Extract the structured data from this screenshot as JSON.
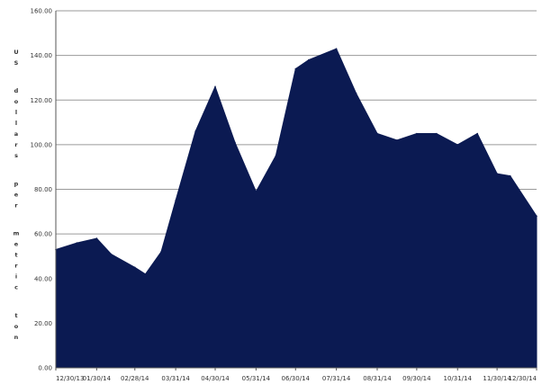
{
  "chart_data": {
    "type": "area",
    "ylabel": "US dollars per metric ton",
    "ylim": [
      0,
      160
    ],
    "yticks": [
      "0.00",
      "20.00",
      "40.00",
      "60.00",
      "80.00",
      "100.00",
      "120.00",
      "140.00",
      "160.00"
    ],
    "xtick_labels": [
      "12/30/13",
      "01/30/14",
      "02/28/14",
      "03/31/14",
      "04/30/14",
      "05/31/14",
      "06/30/14",
      "07/31/14",
      "08/31/14",
      "09/30/14",
      "10/31/14",
      "11/30/14",
      "12/30/14"
    ],
    "grid": true,
    "color": "#0b1a52",
    "series": [
      {
        "x": [
          "12/30/13",
          "01/15/14",
          "01/30/14",
          "02/10/14",
          "02/28/14",
          "03/08/14",
          "03/20/14",
          "03/31/14",
          "04/15/14",
          "04/30/14",
          "05/15/14",
          "05/31/14",
          "06/15/14",
          "06/30/14",
          "07/10/14",
          "07/31/14",
          "08/15/14",
          "08/31/14",
          "09/15/14",
          "09/30/14",
          "10/15/14",
          "10/31/14",
          "11/15/14",
          "11/30/14",
          "12/10/14",
          "12/30/14"
        ],
        "values": [
          53,
          56,
          58,
          51,
          45,
          42,
          52,
          75,
          106,
          126,
          101,
          79,
          95,
          134,
          138,
          143,
          123,
          105,
          102,
          105,
          105,
          100,
          105,
          87,
          86,
          68
        ]
      }
    ]
  }
}
